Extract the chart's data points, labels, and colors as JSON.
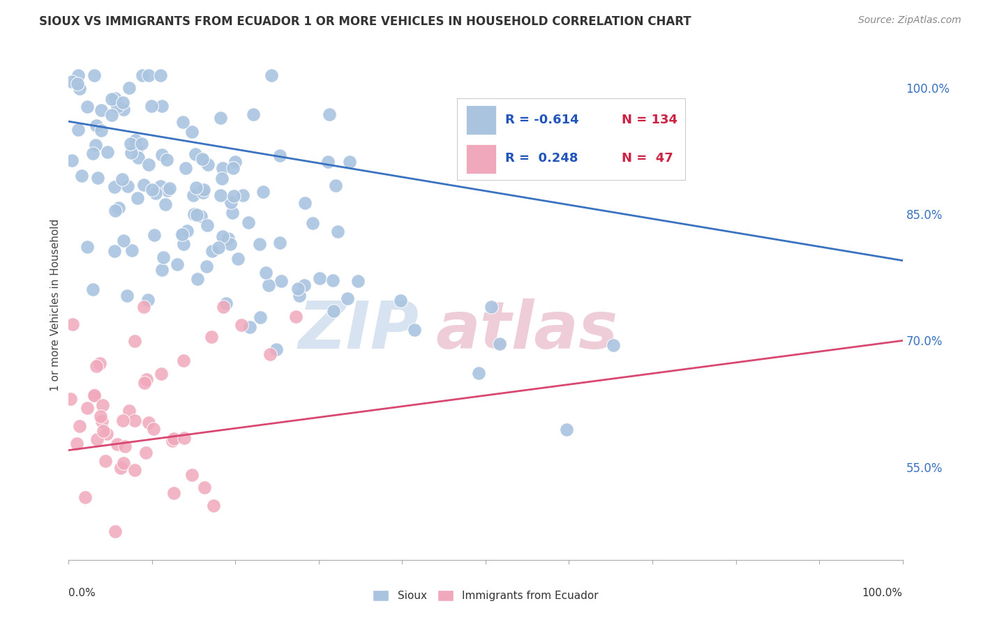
{
  "title": "SIOUX VS IMMIGRANTS FROM ECUADOR 1 OR MORE VEHICLES IN HOUSEHOLD CORRELATION CHART",
  "source": "Source: ZipAtlas.com",
  "ylabel": "1 or more Vehicles in Household",
  "legend_label_blue": "Sioux",
  "legend_label_pink": "Immigrants from Ecuador",
  "blue_color": "#aac4e0",
  "pink_color": "#f0a8bc",
  "blue_line_color": "#3a72c0",
  "pink_line_color": "#d84870",
  "xlim": [
    0.0,
    1.0
  ],
  "ylim": [
    0.44,
    1.045
  ],
  "yticks": [
    0.55,
    0.7,
    0.85,
    1.0
  ],
  "ytick_labels": [
    "55.0%",
    "70.0%",
    "85.0%",
    "100.0%"
  ],
  "blue_line_y_start": 0.96,
  "blue_line_y_end": 0.795,
  "pink_line_x_start": 0.0,
  "pink_line_x_end": 1.0,
  "pink_line_y_start": 0.57,
  "pink_line_y_end": 0.7,
  "background_color": "#ffffff",
  "grid_color": "#dddddd",
  "figsize": [
    14.06,
    8.92
  ],
  "dpi": 100,
  "watermark_zip_color": "#c8d8ec",
  "watermark_atlas_color": "#e8b8c8"
}
